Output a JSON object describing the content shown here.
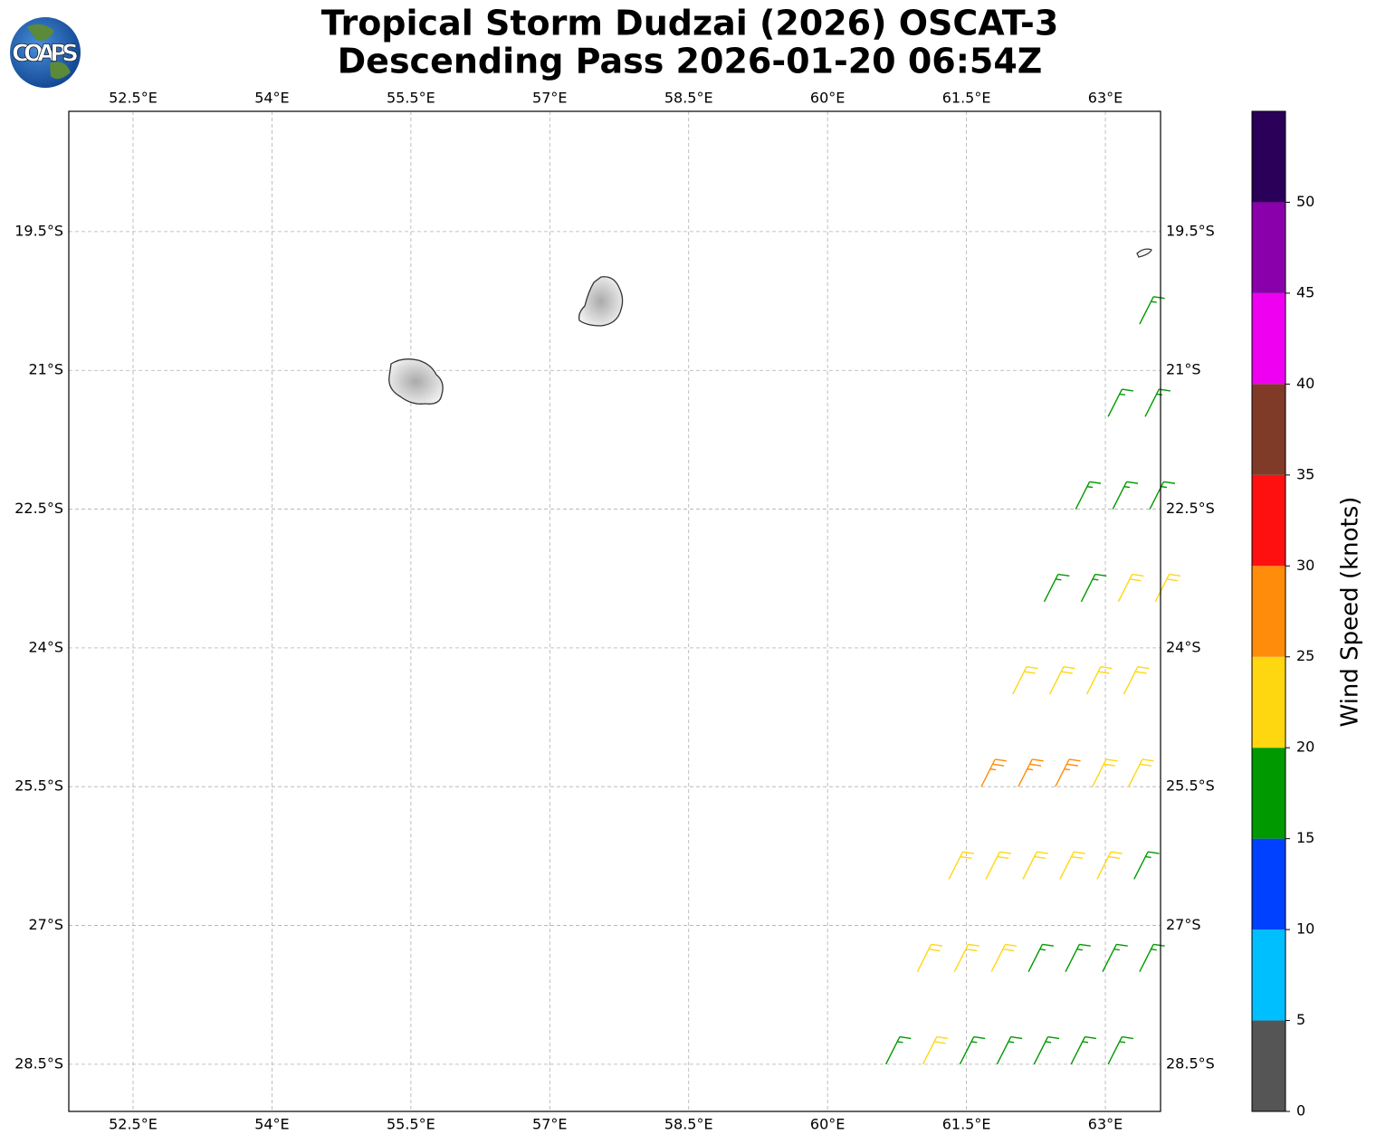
{
  "header": {
    "title_line1": "Tropical Storm Dudzai (2026) OSCAT-3",
    "title_line2": "Descending Pass 2026-01-20 06:54Z",
    "logo_text": "COAPS"
  },
  "map": {
    "xlim": [
      51.806,
      63.596
    ],
    "ylim": [
      -29.01,
      -18.2
    ],
    "grid": true,
    "xticks": [
      {
        "value": 52.5,
        "label": "52.5°E"
      },
      {
        "value": 54,
        "label": "54°E"
      },
      {
        "value": 55.5,
        "label": "55.5°E"
      },
      {
        "value": 57,
        "label": "57°E"
      },
      {
        "value": 58.5,
        "label": "58.5°E"
      },
      {
        "value": 60,
        "label": "60°E"
      },
      {
        "value": 61.5,
        "label": "61.5°E"
      },
      {
        "value": 63,
        "label": "63°E"
      }
    ],
    "yticks": [
      {
        "value": -19.5,
        "label": "19.5°S"
      },
      {
        "value": -21,
        "label": "21°S"
      },
      {
        "value": -22.5,
        "label": "22.5°S"
      },
      {
        "value": -24,
        "label": "24°S"
      },
      {
        "value": -25.5,
        "label": "25.5°S"
      },
      {
        "value": -27,
        "label": "27°S"
      },
      {
        "value": -28.5,
        "label": "28.5°S"
      }
    ],
    "barbs": [
      {
        "lon": 60.63,
        "lat": -28.5,
        "speed": 17
      },
      {
        "lon": 60.97,
        "lat": -27.5,
        "speed": 22
      },
      {
        "lon": 61.31,
        "lat": -26.5,
        "speed": 22
      },
      {
        "lon": 61.66,
        "lat": -25.5,
        "speed": 27
      },
      {
        "lon": 62.0,
        "lat": -24.5,
        "speed": 22
      },
      {
        "lon": 62.34,
        "lat": -23.5,
        "speed": 18
      },
      {
        "lon": 62.68,
        "lat": -22.5,
        "speed": 18
      },
      {
        "lon": 63.03,
        "lat": -21.5,
        "speed": 18
      },
      {
        "lon": 63.37,
        "lat": -20.5,
        "speed": 18
      },
      {
        "lon": 61.03,
        "lat": -28.5,
        "speed": 22
      },
      {
        "lon": 61.37,
        "lat": -27.5,
        "speed": 22
      },
      {
        "lon": 61.71,
        "lat": -26.5,
        "speed": 22
      },
      {
        "lon": 62.06,
        "lat": -25.5,
        "speed": 28
      },
      {
        "lon": 62.4,
        "lat": -24.5,
        "speed": 22
      },
      {
        "lon": 62.74,
        "lat": -23.5,
        "speed": 18
      },
      {
        "lon": 63.08,
        "lat": -22.5,
        "speed": 18
      },
      {
        "lon": 63.43,
        "lat": -21.5,
        "speed": 18
      },
      {
        "lon": 61.43,
        "lat": -28.5,
        "speed": 17
      },
      {
        "lon": 61.77,
        "lat": -27.5,
        "speed": 21
      },
      {
        "lon": 62.11,
        "lat": -26.5,
        "speed": 23
      },
      {
        "lon": 62.46,
        "lat": -25.5,
        "speed": 28
      },
      {
        "lon": 62.8,
        "lat": -24.5,
        "speed": 22
      },
      {
        "lon": 63.14,
        "lat": -23.5,
        "speed": 21
      },
      {
        "lon": 63.48,
        "lat": -22.5,
        "speed": 18
      },
      {
        "lon": 61.83,
        "lat": -28.5,
        "speed": 16
      },
      {
        "lon": 62.17,
        "lat": -27.5,
        "speed": 18
      },
      {
        "lon": 62.51,
        "lat": -26.5,
        "speed": 22
      },
      {
        "lon": 62.86,
        "lat": -25.5,
        "speed": 23
      },
      {
        "lon": 63.2,
        "lat": -24.5,
        "speed": 22
      },
      {
        "lon": 63.54,
        "lat": -23.5,
        "speed": 21
      },
      {
        "lon": 62.23,
        "lat": -28.5,
        "speed": 17
      },
      {
        "lon": 62.57,
        "lat": -27.5,
        "speed": 17
      },
      {
        "lon": 62.91,
        "lat": -26.5,
        "speed": 21
      },
      {
        "lon": 63.25,
        "lat": -25.5,
        "speed": 22
      },
      {
        "lon": 62.63,
        "lat": -28.5,
        "speed": 17
      },
      {
        "lon": 62.97,
        "lat": -27.5,
        "speed": 17
      },
      {
        "lon": 63.31,
        "lat": -26.5,
        "speed": 18
      },
      {
        "lon": 63.03,
        "lat": -28.5,
        "speed": 16
      },
      {
        "lon": 63.37,
        "lat": -27.5,
        "speed": 17
      }
    ]
  },
  "colorbar": {
    "label": "Wind Speed (knots)",
    "bounds": [
      0,
      5,
      10,
      15,
      20,
      25,
      30,
      35,
      40,
      45,
      50,
      55
    ],
    "colors": [
      "#555555",
      "#00bfff",
      "#0040ff",
      "#009900",
      "#ffd711",
      "#ff8c0a",
      "#ff1010",
      "#803a28",
      "#f000f0",
      "#8a00aa",
      "#2a0058"
    ],
    "ticks": [
      0,
      5,
      10,
      15,
      20,
      25,
      30,
      35,
      40,
      45,
      50
    ]
  }
}
